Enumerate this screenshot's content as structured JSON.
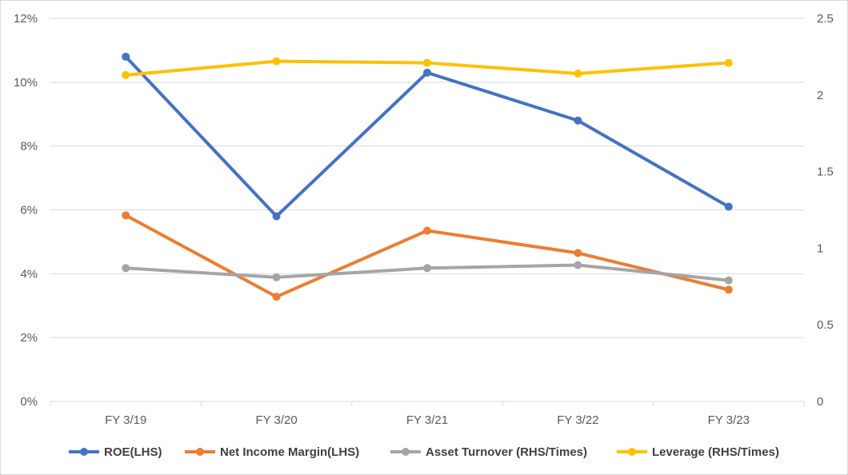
{
  "chart_data": {
    "type": "line",
    "categories": [
      "FY 3/19",
      "FY 3/20",
      "FY 3/21",
      "FY 3/22",
      "FY 3/23"
    ],
    "y_left": {
      "min": 0,
      "max": 12,
      "step": 2,
      "ticks": [
        "0%",
        "2%",
        "4%",
        "6%",
        "8%",
        "10%",
        "12%"
      ]
    },
    "y_right": {
      "min": 0,
      "max": 2.5,
      "step": 0.5,
      "ticks": [
        "0",
        "0.5",
        "1",
        "1.5",
        "2",
        "2.5"
      ]
    },
    "grid": true,
    "legend_position": "bottom",
    "series": [
      {
        "name": "ROE(LHS)",
        "axis": "left",
        "color": "#4472c4",
        "values": [
          10.8,
          5.8,
          10.3,
          8.8,
          6.1
        ]
      },
      {
        "name": "Net Income Margin(LHS)",
        "axis": "left",
        "color": "#ed7d31",
        "values": [
          5.83,
          3.28,
          5.35,
          4.65,
          3.5
        ]
      },
      {
        "name": "Asset Turnover (RHS/Times)",
        "axis": "right",
        "color": "#a5a5a5",
        "values": [
          0.87,
          0.81,
          0.87,
          0.89,
          0.79
        ]
      },
      {
        "name": "Leverage (RHS/Times)",
        "axis": "right",
        "color": "#ffc000",
        "values": [
          2.13,
          2.22,
          2.21,
          2.14,
          2.21
        ]
      }
    ]
  }
}
